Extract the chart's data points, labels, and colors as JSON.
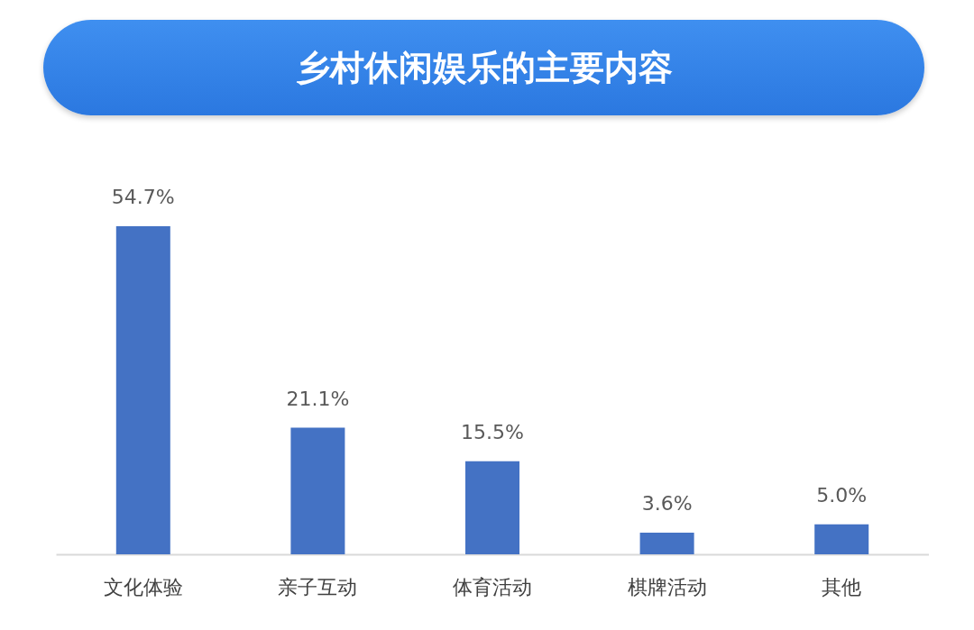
{
  "chart_data": {
    "type": "bar",
    "title": "乡村休闲娱乐的主要内容",
    "categories": [
      "文化体验",
      "亲子互动",
      "体育活动",
      "棋牌活动",
      "其他"
    ],
    "values": [
      54.7,
      21.1,
      15.5,
      3.6,
      5.0
    ],
    "value_labels": [
      "54.7%",
      "21.1%",
      "15.5%",
      "3.6%",
      "5.0%"
    ],
    "color": "#4472c4",
    "grid": false
  }
}
